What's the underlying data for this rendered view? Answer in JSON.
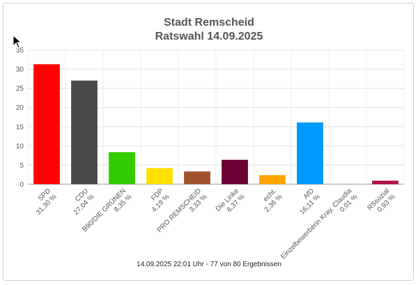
{
  "header": {
    "title": "Stadt Remscheid",
    "subtitle": "Ratswahl 14.09.2025"
  },
  "footer": {
    "text": "14.09.2025 22:01 Uhr - 77 von 80 Ergebnissen"
  },
  "chart_data": {
    "type": "bar",
    "categories": [
      "SPD",
      "CDU",
      "B90/DIE GRÜNEN",
      "FDP",
      "PRO REMSCHEID",
      "Die Linke",
      "echt.",
      "AfD",
      "Einzelbewerberin Kray, Claudia",
      "RSsozial"
    ],
    "value_labels": [
      "31,30 %",
      "27,04 %",
      "8,35 %",
      "4,19 %",
      "3,33 %",
      "6,37 %",
      "2,36 %",
      "16,11 %",
      "0,01 %",
      "0,93 %"
    ],
    "values": [
      31.3,
      27.04,
      8.35,
      4.19,
      3.33,
      6.37,
      2.36,
      16.11,
      0.01,
      0.93
    ],
    "colors": [
      "#ff0000",
      "#4a4a4a",
      "#33cc00",
      "#ffe000",
      "#a0522d",
      "#6b0033",
      "#ffa500",
      "#0099ff",
      "#888888",
      "#b0144a"
    ],
    "ylim": [
      0,
      35
    ],
    "yticks": [
      0,
      5,
      10,
      15,
      20,
      25,
      30,
      35
    ],
    "grid": true,
    "title": "Stadt Remscheid",
    "subtitle": "Ratswahl 14.09.2025"
  }
}
